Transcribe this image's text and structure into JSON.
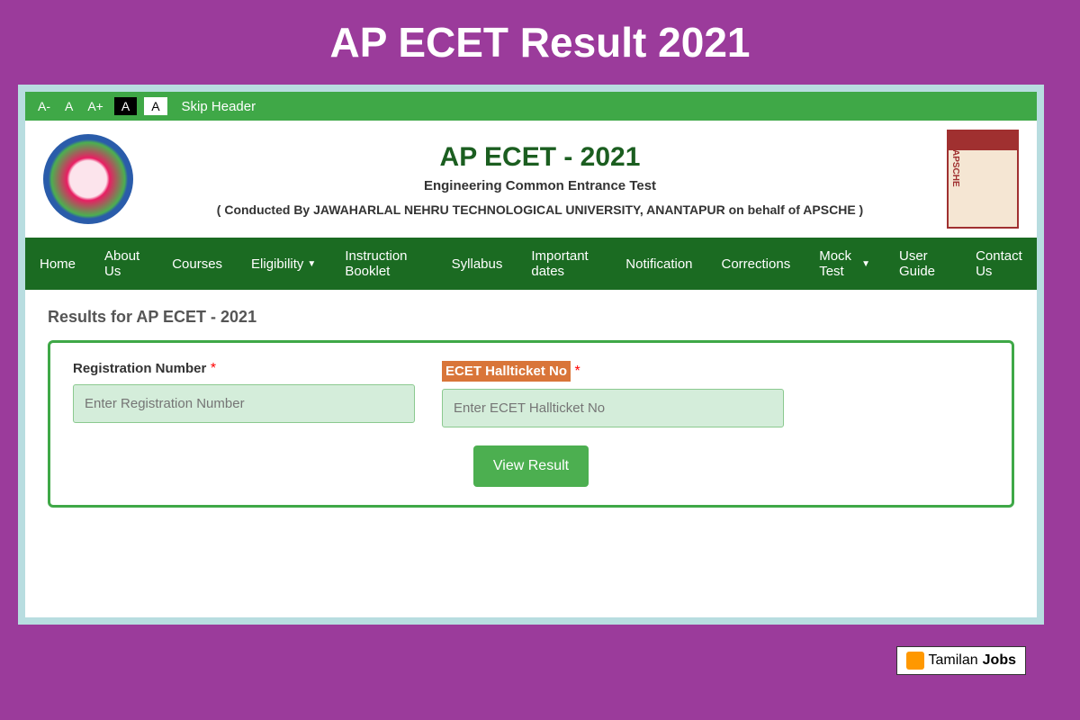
{
  "page": {
    "title": "AP ECET Result 2021",
    "background_color": "#9b3b9b"
  },
  "accessibility": {
    "font_decrease": "A-",
    "font_normal": "A",
    "font_increase": "A+",
    "contrast_dark": "A",
    "contrast_light": "A",
    "skip_header": "Skip Header"
  },
  "header": {
    "main_title": "AP ECET - 2021",
    "subtitle": "Engineering Common Entrance Test",
    "conducted_by": "( Conducted By JAWAHARLAL NEHRU TECHNOLOGICAL UNIVERSITY, ANANTAPUR on behalf of APSCHE )"
  },
  "nav": {
    "items": [
      {
        "label": "Home",
        "dropdown": false
      },
      {
        "label": "About Us",
        "dropdown": false
      },
      {
        "label": "Courses",
        "dropdown": false
      },
      {
        "label": "Eligibility",
        "dropdown": true
      },
      {
        "label": "Instruction Booklet",
        "dropdown": false
      },
      {
        "label": "Syllabus",
        "dropdown": false
      },
      {
        "label": "Important dates",
        "dropdown": false
      },
      {
        "label": "Notification",
        "dropdown": false
      },
      {
        "label": "Corrections",
        "dropdown": false
      },
      {
        "label": "Mock Test",
        "dropdown": true
      },
      {
        "label": "User Guide",
        "dropdown": false
      },
      {
        "label": "Contact Us",
        "dropdown": false
      }
    ]
  },
  "content": {
    "heading": "Results for AP ECET - 2021",
    "form": {
      "registration": {
        "label": "Registration Number",
        "placeholder": "Enter Registration Number"
      },
      "hallticket": {
        "label": "ECET Hallticket No",
        "placeholder": "Enter ECET Hallticket No"
      },
      "submit_label": "View Result"
    }
  },
  "watermark": {
    "text1": "Tamilan",
    "text2": "Jobs"
  },
  "colors": {
    "nav_bg": "#1b6b22",
    "topbar_bg": "#3fa847",
    "title_color": "#1b5e20",
    "highlight_bg": "#d97539",
    "input_bg": "#d4edda",
    "button_bg": "#4caf50"
  }
}
